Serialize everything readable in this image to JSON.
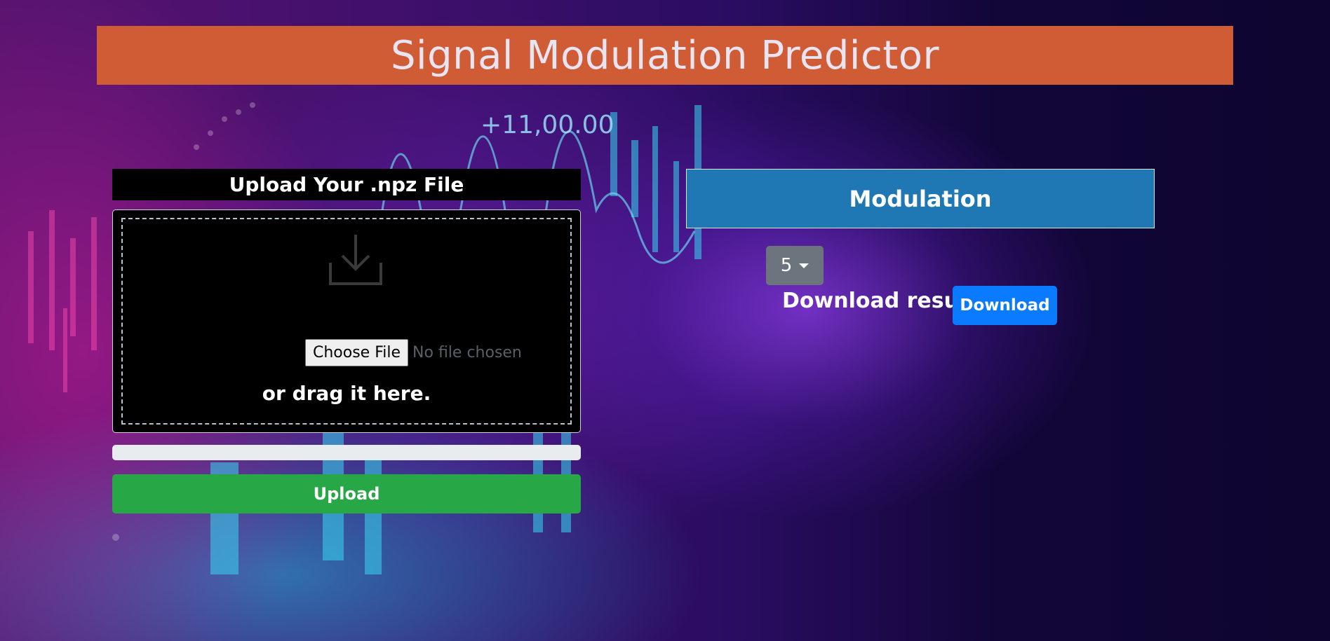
{
  "header": {
    "title": "Signal Modulation Predictor"
  },
  "upload": {
    "title": "Upload Your .npz File",
    "choose_file_label": "Choose File",
    "file_status": "No file chosen",
    "drag_text": "or drag it here.",
    "upload_button": "Upload"
  },
  "results": {
    "heading": "Modulation",
    "dropdown_value": "5",
    "download_label": "Download results:",
    "download_button": "Download"
  },
  "icons": {
    "drop_icon": "download-tray-icon",
    "dropdown_caret": "caret-down-icon"
  },
  "colors": {
    "header_bg": "#cf5c35",
    "modulation_bg": "#1f78b4",
    "upload_btn": "#27a745",
    "download_btn": "#0a7bff",
    "dropdown_bg": "#6c757d"
  }
}
